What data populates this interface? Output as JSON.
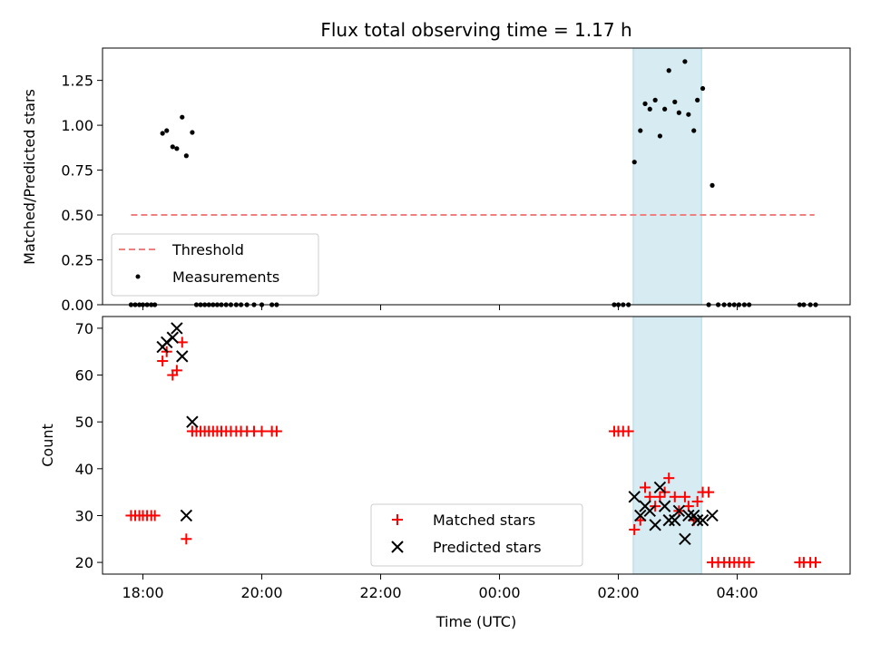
{
  "chart_data": [
    {
      "type": "scatter",
      "title": "Flux total observing time = 1.17 h",
      "xlabel": "",
      "ylabel": "Matched/Predicted stars",
      "ylim": [
        0,
        1.43
      ],
      "yticks": [
        "0.00",
        "0.25",
        "0.50",
        "0.75",
        "1.00",
        "1.25"
      ],
      "ytick_values": [
        0,
        0.25,
        0.5,
        0.75,
        1.0,
        1.25
      ],
      "xlim_hours": [
        17.32,
        29.9
      ],
      "highlight_span_hours": [
        26.25,
        27.4
      ],
      "highlight_color": "#add8e6",
      "threshold": {
        "name": "Threshold",
        "y": 0.5,
        "x_hours": [
          17.8,
          29.3
        ],
        "color": "#f08080"
      },
      "legend_position": "lower-left",
      "series": [
        {
          "name": "Measurements",
          "color": "#000000",
          "points": [
            [
              17.8,
              0
            ],
            [
              17.87,
              0
            ],
            [
              17.94,
              0
            ],
            [
              18.0,
              0
            ],
            [
              18.07,
              0
            ],
            [
              18.14,
              0
            ],
            [
              18.2,
              0
            ],
            [
              18.33,
              0.955
            ],
            [
              18.4,
              0.97
            ],
            [
              18.5,
              0.88
            ],
            [
              18.57,
              0.87
            ],
            [
              18.66,
              1.045
            ],
            [
              18.73,
              0.83
            ],
            [
              18.83,
              0.96
            ],
            [
              18.9,
              0
            ],
            [
              18.97,
              0
            ],
            [
              19.04,
              0
            ],
            [
              19.11,
              0
            ],
            [
              19.18,
              0
            ],
            [
              19.25,
              0
            ],
            [
              19.32,
              0
            ],
            [
              19.4,
              0
            ],
            [
              19.48,
              0
            ],
            [
              19.57,
              0
            ],
            [
              19.65,
              0
            ],
            [
              19.75,
              0
            ],
            [
              19.87,
              0
            ],
            [
              20.0,
              0
            ],
            [
              20.17,
              0
            ],
            [
              20.25,
              0
            ],
            [
              25.93,
              0
            ],
            [
              26.0,
              0
            ],
            [
              26.08,
              0
            ],
            [
              26.17,
              0
            ],
            [
              26.27,
              0.795
            ],
            [
              26.37,
              0.97
            ],
            [
              26.45,
              1.12
            ],
            [
              26.53,
              1.09
            ],
            [
              26.62,
              1.14
            ],
            [
              26.7,
              0.94
            ],
            [
              26.78,
              1.09
            ],
            [
              26.85,
              1.305
            ],
            [
              26.95,
              1.13
            ],
            [
              27.02,
              1.07
            ],
            [
              27.12,
              1.355
            ],
            [
              27.18,
              1.06
            ],
            [
              27.27,
              0.97
            ],
            [
              27.33,
              1.14
            ],
            [
              27.42,
              1.205
            ],
            [
              27.52,
              0
            ],
            [
              27.58,
              0.665
            ],
            [
              27.68,
              0
            ],
            [
              27.78,
              0
            ],
            [
              27.87,
              0
            ],
            [
              27.95,
              0
            ],
            [
              28.03,
              0
            ],
            [
              28.12,
              0
            ],
            [
              28.2,
              0
            ],
            [
              29.05,
              0
            ],
            [
              29.12,
              0
            ],
            [
              29.23,
              0
            ],
            [
              29.32,
              0
            ]
          ]
        }
      ]
    },
    {
      "type": "scatter",
      "title": "",
      "xlabel": "Time (UTC)",
      "ylabel": "Count",
      "ylim": [
        17.5,
        72.5
      ],
      "yticks": [
        "20",
        "30",
        "40",
        "50",
        "60",
        "70"
      ],
      "ytick_values": [
        20,
        30,
        40,
        50,
        60,
        70
      ],
      "xlim_hours": [
        17.32,
        29.9
      ],
      "xticks": [
        "18:00",
        "20:00",
        "22:00",
        "00:00",
        "02:00",
        "04:00"
      ],
      "xtick_hours": [
        18,
        20,
        22,
        24,
        26,
        28
      ],
      "highlight_span_hours": [
        26.25,
        27.4
      ],
      "highlight_color": "#add8e6",
      "legend_position": "lower-center",
      "series": [
        {
          "name": "Matched stars",
          "color": "#ff0000",
          "marker": "plus",
          "points": [
            [
              17.8,
              30
            ],
            [
              17.87,
              30
            ],
            [
              17.94,
              30
            ],
            [
              18.0,
              30
            ],
            [
              18.07,
              30
            ],
            [
              18.14,
              30
            ],
            [
              18.2,
              30
            ],
            [
              18.33,
              63
            ],
            [
              18.4,
              65
            ],
            [
              18.5,
              60
            ],
            [
              18.57,
              61
            ],
            [
              18.66,
              67
            ],
            [
              18.73,
              25
            ],
            [
              18.83,
              48
            ],
            [
              18.9,
              48
            ],
            [
              18.97,
              48
            ],
            [
              19.04,
              48
            ],
            [
              19.11,
              48
            ],
            [
              19.18,
              48
            ],
            [
              19.25,
              48
            ],
            [
              19.32,
              48
            ],
            [
              19.4,
              48
            ],
            [
              19.48,
              48
            ],
            [
              19.57,
              48
            ],
            [
              19.65,
              48
            ],
            [
              19.75,
              48
            ],
            [
              19.87,
              48
            ],
            [
              20.0,
              48
            ],
            [
              20.17,
              48
            ],
            [
              20.25,
              48
            ],
            [
              25.93,
              48
            ],
            [
              26.0,
              48
            ],
            [
              26.08,
              48
            ],
            [
              26.17,
              48
            ],
            [
              26.27,
              27
            ],
            [
              26.37,
              29
            ],
            [
              26.45,
              36
            ],
            [
              26.53,
              34
            ],
            [
              26.62,
              32
            ],
            [
              26.7,
              34
            ],
            [
              26.78,
              35
            ],
            [
              26.85,
              38
            ],
            [
              26.95,
              34
            ],
            [
              27.02,
              31
            ],
            [
              27.12,
              34
            ],
            [
              27.18,
              32
            ],
            [
              27.27,
              29
            ],
            [
              27.33,
              33
            ],
            [
              27.42,
              35
            ],
            [
              27.52,
              35
            ],
            [
              27.58,
              20
            ],
            [
              27.68,
              20
            ],
            [
              27.78,
              20
            ],
            [
              27.87,
              20
            ],
            [
              27.95,
              20
            ],
            [
              28.03,
              20
            ],
            [
              28.12,
              20
            ],
            [
              28.2,
              20
            ],
            [
              29.05,
              20
            ],
            [
              29.12,
              20
            ],
            [
              29.23,
              20
            ],
            [
              29.32,
              20
            ]
          ]
        },
        {
          "name": "Predicted stars",
          "color": "#000000",
          "marker": "x",
          "points": [
            [
              18.33,
              66
            ],
            [
              18.4,
              67
            ],
            [
              18.5,
              68
            ],
            [
              18.57,
              70
            ],
            [
              18.66,
              64
            ],
            [
              18.73,
              30
            ],
            [
              18.83,
              50
            ],
            [
              26.27,
              34
            ],
            [
              26.37,
              30
            ],
            [
              26.45,
              32
            ],
            [
              26.53,
              31
            ],
            [
              26.62,
              28
            ],
            [
              26.7,
              36
            ],
            [
              26.78,
              32
            ],
            [
              26.85,
              29
            ],
            [
              26.95,
              29
            ],
            [
              27.02,
              31
            ],
            [
              27.12,
              25
            ],
            [
              27.18,
              30
            ],
            [
              27.27,
              30
            ],
            [
              27.33,
              29
            ],
            [
              27.42,
              29
            ],
            [
              27.58,
              30
            ]
          ]
        }
      ]
    }
  ]
}
